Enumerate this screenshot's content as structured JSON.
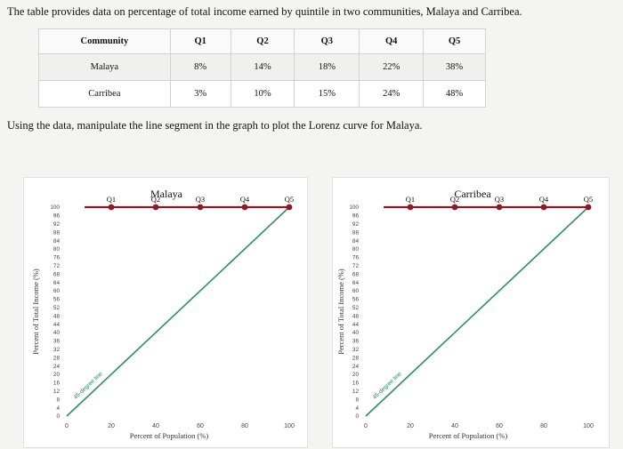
{
  "intro_text": "The table provides data on percentage of total income earned by quintile in two communities, Malaya and Carribea.",
  "table": {
    "headers": [
      "Community",
      "Q1",
      "Q2",
      "Q3",
      "Q4",
      "Q5"
    ],
    "rows": [
      {
        "community": "Malaya",
        "values": [
          "8%",
          "14%",
          "18%",
          "22%",
          "38%"
        ]
      },
      {
        "community": "Carribea",
        "values": [
          "3%",
          "10%",
          "15%",
          "24%",
          "48%"
        ]
      }
    ]
  },
  "instruction_text": "Using the data, manipulate the line segment in the graph to plot the Lorenz curve for Malaya.",
  "chart_data": [
    {
      "type": "line",
      "title": "Malaya",
      "xlabel": "Percent of Population (%)",
      "ylabel": "Percent of Total Income (%)",
      "xlim": [
        0,
        100
      ],
      "ylim": [
        0,
        100
      ],
      "x_ticks": [
        0,
        20,
        40,
        60,
        80,
        100
      ],
      "y_ticks": [
        0,
        4,
        8,
        12,
        16,
        20,
        24,
        28,
        32,
        36,
        40,
        44,
        48,
        52,
        56,
        60,
        64,
        68,
        72,
        76,
        80,
        84,
        88,
        92,
        96,
        100
      ],
      "series": [
        {
          "name": "45-degree line",
          "x": [
            0,
            100
          ],
          "y": [
            0,
            100
          ],
          "color": "#2e8f5a"
        },
        {
          "x": [
            20,
            40,
            60,
            80,
            100
          ],
          "y": [
            100,
            100,
            100,
            100,
            100
          ],
          "point_labels": [
            "Q1",
            "Q2",
            "Q3",
            "Q4",
            "Q5"
          ],
          "color": "#8a1c2a"
        }
      ]
    },
    {
      "type": "line",
      "title": "Carribea",
      "xlabel": "Percent of Population (%)",
      "ylabel": "Percent of Total Income (%)",
      "xlim": [
        0,
        100
      ],
      "ylim": [
        0,
        100
      ],
      "x_ticks": [
        0,
        20,
        40,
        60,
        80,
        100
      ],
      "y_ticks": [
        0,
        4,
        8,
        12,
        16,
        20,
        24,
        28,
        32,
        36,
        40,
        44,
        48,
        52,
        56,
        60,
        64,
        68,
        72,
        76,
        80,
        84,
        88,
        92,
        96,
        100
      ],
      "series": [
        {
          "name": "45-degree line",
          "x": [
            0,
            100
          ],
          "y": [
            0,
            100
          ],
          "color": "#2e8f5a"
        },
        {
          "x": [
            20,
            40,
            60,
            80,
            100
          ],
          "y": [
            100,
            100,
            100,
            100,
            100
          ],
          "point_labels": [
            "Q1",
            "Q2",
            "Q3",
            "Q4",
            "Q5"
          ],
          "color": "#8a1c2a"
        }
      ]
    }
  ]
}
